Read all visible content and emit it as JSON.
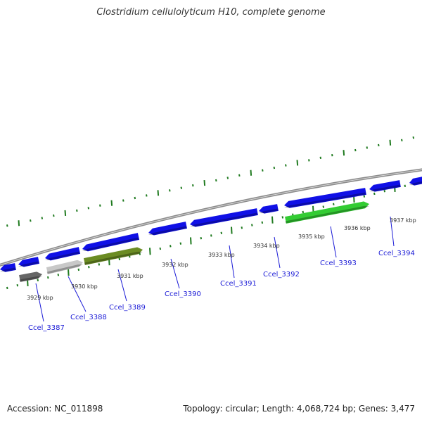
{
  "title": "Clostridium cellulolyticum H10, complete genome",
  "footer": {
    "accession": "Accession: NC_011898",
    "summary": "Topology: circular; Length: 4,068,724 bp; Genes: 3,477"
  },
  "colors": {
    "backbone": "#8c8c8c",
    "forward_gene": "#1010e6",
    "tick": "#1f7a1f",
    "label": "#1a1ad6",
    "leader_line": "#1a1ad6"
  },
  "scale_labels": [
    "3929 kbp",
    "3930 kbp",
    "3931 kbp",
    "3932 kbp",
    "3933 kbp",
    "3934 kbp",
    "3935 kbp",
    "3936 kbp",
    "3937 kbp"
  ],
  "highlighted_genes": [
    {
      "name": "Ccel_3387",
      "color": "#666666"
    },
    {
      "name": "Ccel_3388",
      "color": "#c8c8c8"
    },
    {
      "name": "Ccel_3389",
      "color": "#6b8c23"
    },
    {
      "name": "Ccel_3390",
      "color": "#1010e6"
    },
    {
      "name": "Ccel_3391",
      "color": "#1010e6"
    },
    {
      "name": "Ccel_3392",
      "color": "#1010e6"
    },
    {
      "name": "Ccel_3393",
      "color": "#33cc33"
    },
    {
      "name": "Ccel_3394",
      "color": "#1010e6"
    }
  ]
}
